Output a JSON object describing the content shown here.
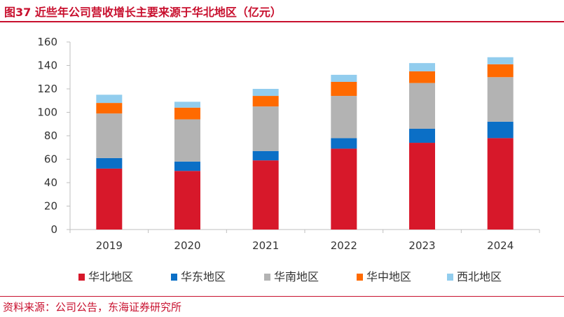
{
  "title": "图37  近些年公司营收增长主要来源于华北地区（亿元）",
  "source": "资料来源：公司公告，东海证券研究所",
  "colors": {
    "brand": "#c8102e",
    "axis": "#bfbfbf",
    "text": "#333333"
  },
  "chart_data": {
    "type": "bar",
    "stacked": true,
    "categories": [
      "2019",
      "2020",
      "2021",
      "2022",
      "2023",
      "2024"
    ],
    "series": [
      {
        "name": "华北地区",
        "color": "#d7182a",
        "values": [
          52,
          50,
          59,
          69,
          74,
          78
        ]
      },
      {
        "name": "华东地区",
        "color": "#0b6fc6",
        "values": [
          9,
          8,
          8,
          9,
          12,
          14
        ]
      },
      {
        "name": "华南地区",
        "color": "#b3b3b3",
        "values": [
          38,
          36,
          38,
          36,
          39,
          38
        ]
      },
      {
        "name": "华中地区",
        "color": "#ff6a00",
        "values": [
          9,
          10,
          9,
          12,
          10,
          11
        ]
      },
      {
        "name": "西北地区",
        "color": "#92cdee",
        "values": [
          7,
          5,
          6,
          6,
          7,
          6
        ]
      }
    ],
    "ylim": [
      0,
      160
    ],
    "yticks": [
      0,
      20,
      40,
      60,
      80,
      100,
      120,
      140,
      160
    ],
    "grid": false,
    "legend": "bottom",
    "xlabel": "",
    "ylabel": ""
  }
}
